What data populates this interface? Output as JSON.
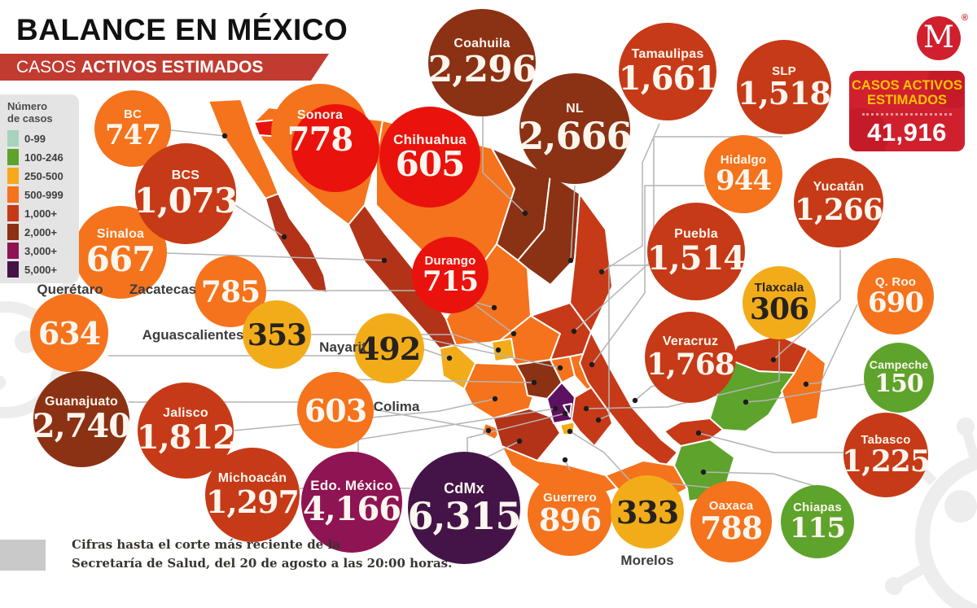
{
  "header": {
    "title_regular": "BALANCE EN ",
    "title_bold": "MÉXICO",
    "banner_regular": "CASOS ",
    "banner_bold": "ACTIVOS ESTIMADOS"
  },
  "brand": {
    "logo_letter": "M",
    "registered": "®"
  },
  "total_box": {
    "line1": "CASOS ACTIVOS",
    "line2": "ESTIMADOS",
    "value": "41,916"
  },
  "legend": {
    "title_line1": "Número",
    "title_line2": "de casos",
    "items": [
      {
        "label": "0-99",
        "color": "#a6d3bd"
      },
      {
        "label": "100-246",
        "color": "#5ea32c"
      },
      {
        "label": "250-500",
        "color": "#f7a81b"
      },
      {
        "label": "500-999",
        "color": "#f4731c"
      },
      {
        "label": "1,000+",
        "color": "#c63a17"
      },
      {
        "label": "2,000+",
        "color": "#8b3114"
      },
      {
        "label": "3,000+",
        "color": "#8e1453"
      },
      {
        "label": "5,000+",
        "color": "#441449"
      }
    ]
  },
  "palette": {
    "mint": "#a6d3bd",
    "green": "#5ea32c",
    "amber": "#f3ac19",
    "orange": "#f4731c",
    "red": "#c63a17",
    "brick": "#b23318",
    "brown": "#8b3114",
    "magenta": "#8e1453",
    "violet": "#5e1160",
    "purple": "#441449",
    "alert": "#ea120d"
  },
  "chart_data": {
    "type": "bubble-map",
    "title": "CASOS ACTIVOS ESTIMADOS",
    "region": "México",
    "total": 41916,
    "legend_buckets": [
      "0-99",
      "100-246",
      "250-500",
      "500-999",
      "1,000+",
      "2,000+",
      "3,000+",
      "5,000+"
    ],
    "states": [
      {
        "id": "bc",
        "label": "BC",
        "value": "747",
        "numeric": 747,
        "color": "orange",
        "text": "light"
      },
      {
        "id": "sonora",
        "label": "Sonora",
        "value": "778",
        "numeric": 778,
        "color": "alert",
        "text": "light"
      },
      {
        "id": "sinaloa",
        "label": "Sinaloa",
        "value": "667",
        "numeric": 667,
        "color": "orange",
        "text": "light"
      },
      {
        "id": "bcs",
        "label": "BCS",
        "value": "1,073",
        "numeric": 1073,
        "color": "red",
        "text": "light"
      },
      {
        "id": "chihuahua",
        "label": "Chihuahua",
        "value": "605",
        "numeric": 605,
        "color": "alert",
        "text": "light"
      },
      {
        "id": "coahuila",
        "label": "Coahuila",
        "value": "2,296",
        "numeric": 2296,
        "color": "brown",
        "text": "light"
      },
      {
        "id": "nl",
        "label": "NL",
        "value": "2,666",
        "numeric": 2666,
        "color": "brown",
        "text": "light"
      },
      {
        "id": "tamaulipas",
        "label": "Tamaulipas",
        "value": "1,661",
        "numeric": 1661,
        "color": "red",
        "text": "light"
      },
      {
        "id": "slp",
        "label": "SLP",
        "value": "1,518",
        "numeric": 1518,
        "color": "red",
        "text": "light"
      },
      {
        "id": "durango",
        "label": "Durango",
        "value": "715",
        "numeric": 715,
        "color": "alert",
        "text": "light"
      },
      {
        "id": "zacatecas",
        "label": "Zacatecas",
        "value": "785",
        "numeric": 785,
        "color": "orange",
        "text": "light",
        "label_outside": "left"
      },
      {
        "id": "hidalgo",
        "label": "Hidalgo",
        "value": "944",
        "numeric": 944,
        "color": "orange",
        "text": "light"
      },
      {
        "id": "yucatan",
        "label": "Yucatán",
        "value": "1,266",
        "numeric": 1266,
        "color": "red",
        "text": "light"
      },
      {
        "id": "puebla",
        "label": "Puebla",
        "value": "1,514",
        "numeric": 1514,
        "color": "red",
        "text": "light"
      },
      {
        "id": "tlaxcala",
        "label": "Tlaxcala",
        "value": "306",
        "numeric": 306,
        "color": "amber",
        "text": "dark"
      },
      {
        "id": "qroo",
        "label": "Q. Roo",
        "value": "690",
        "numeric": 690,
        "color": "orange",
        "text": "light"
      },
      {
        "id": "queretaro",
        "label": "Querétaro",
        "value": "634",
        "numeric": 634,
        "color": "orange",
        "text": "light",
        "label_outside": "above"
      },
      {
        "id": "aguascalientes",
        "label": "Aguascalientes",
        "value": "353",
        "numeric": 353,
        "color": "amber",
        "text": "dark",
        "label_outside": "left"
      },
      {
        "id": "nayarit",
        "label": "Nayarit",
        "value": "492",
        "numeric": 492,
        "color": "amber",
        "text": "dark",
        "label_outside": "left"
      },
      {
        "id": "veracruz",
        "label": "Veracruz",
        "value": "1,768",
        "numeric": 1768,
        "color": "red",
        "text": "light"
      },
      {
        "id": "campeche",
        "label": "Campeche",
        "value": "150",
        "numeric": 150,
        "color": "green",
        "text": "light"
      },
      {
        "id": "guanajuato",
        "label": "Guanajuato",
        "value": "2,740",
        "numeric": 2740,
        "color": "brown",
        "text": "light"
      },
      {
        "id": "jalisco",
        "label": "Jalisco",
        "value": "1,812",
        "numeric": 1812,
        "color": "red",
        "text": "light"
      },
      {
        "id": "colima",
        "label": "Colima",
        "value": "603",
        "numeric": 603,
        "color": "orange",
        "text": "light",
        "label_outside": "right"
      },
      {
        "id": "tabasco",
        "label": "Tabasco",
        "value": "1,225",
        "numeric": 1225,
        "color": "red",
        "text": "light"
      },
      {
        "id": "michoacan",
        "label": "Michoacán",
        "value": "1,297",
        "numeric": 1297,
        "color": "red",
        "text": "light"
      },
      {
        "id": "edomex",
        "label": "Edo. México",
        "value": "4,166",
        "numeric": 4166,
        "color": "magenta",
        "text": "light"
      },
      {
        "id": "cdmx",
        "label": "CdMx",
        "value": "6,315",
        "numeric": 6315,
        "color": "purple",
        "text": "light"
      },
      {
        "id": "guerrero",
        "label": "Guerrero",
        "value": "896",
        "numeric": 896,
        "color": "orange",
        "text": "light"
      },
      {
        "id": "morelos",
        "label": "Morelos",
        "value": "333",
        "numeric": 333,
        "color": "amber",
        "text": "dark",
        "label_outside": "below"
      },
      {
        "id": "oaxaca",
        "label": "Oaxaca",
        "value": "788",
        "numeric": 788,
        "color": "orange",
        "text": "light"
      },
      {
        "id": "chiapas",
        "label": "Chiapas",
        "value": "115",
        "numeric": 115,
        "color": "green",
        "text": "light"
      }
    ]
  },
  "footer": {
    "line1": "Cifras hasta el corte más reciente de la",
    "line2": "Secretaría de Salud, del 20 de agosto a las 20:00 horas."
  }
}
